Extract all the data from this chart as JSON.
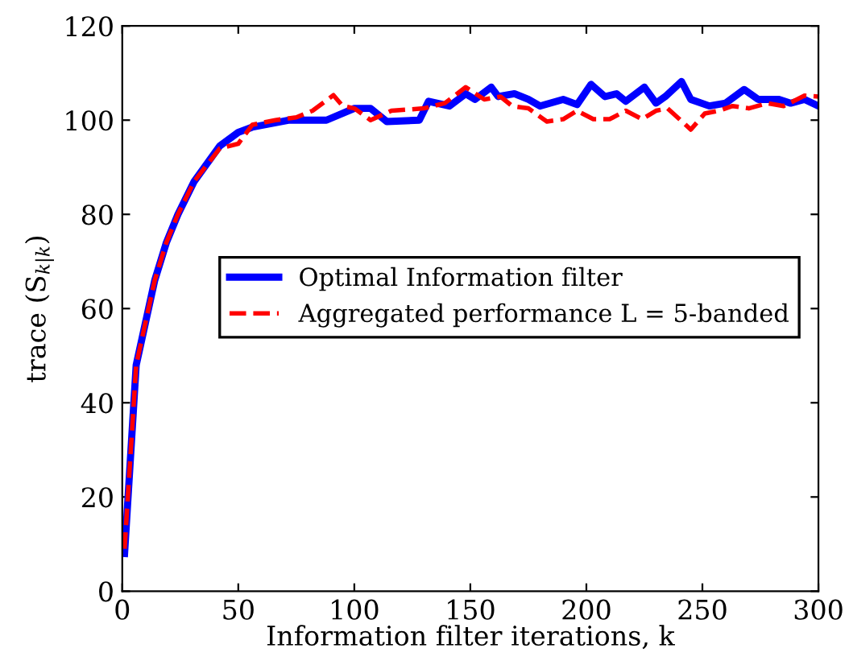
{
  "chart_data": {
    "type": "line",
    "xlabel": "Information filter iterations, k",
    "ylabel": "trace (S$_{k|k}$)",
    "xlim": [
      0,
      300
    ],
    "ylim": [
      0,
      120
    ],
    "xticks": [
      0,
      50,
      100,
      150,
      200,
      250,
      300
    ],
    "yticks": [
      0,
      20,
      40,
      60,
      80,
      100,
      120
    ],
    "grid": false,
    "legend": "center right",
    "marker": "none",
    "series": [
      {
        "name": "Optimal Information filter",
        "color": "#0000ff",
        "line_style": "solid",
        "x": [
          1,
          6,
          14,
          19,
          24,
          31,
          42,
          50,
          56,
          72,
          88,
          100,
          107,
          114,
          128,
          132,
          141,
          148,
          152,
          159,
          162,
          169,
          175,
          180,
          190,
          196,
          202,
          208,
          213,
          217,
          225,
          230,
          234,
          241,
          245,
          253,
          260,
          268,
          274,
          283,
          288,
          294,
          300
        ],
        "values": [
          8,
          48,
          66,
          74,
          80,
          87,
          94.5,
          97.4,
          98.5,
          100,
          100,
          102.5,
          102.5,
          99.7,
          100,
          104,
          103,
          105.6,
          104.4,
          107,
          105,
          105.6,
          104.4,
          103,
          104.4,
          103.3,
          107.6,
          105,
          105.6,
          104,
          107,
          103.6,
          105,
          108.2,
          104.4,
          103,
          103.6,
          106.5,
          104.4,
          104.4,
          103.6,
          104.4,
          103
        ]
      },
      {
        "name": "Aggregated performance L = 5-banded",
        "color": "#ff0000",
        "line_style": "dashed",
        "x": [
          1,
          6,
          14,
          19,
          24,
          31,
          42,
          50,
          56,
          66,
          75,
          82,
          91,
          95,
          100,
          107,
          116,
          130,
          139,
          148,
          156,
          163,
          168,
          175,
          183,
          190,
          196,
          203,
          210,
          217,
          224,
          230,
          235,
          245,
          251,
          257,
          263,
          270,
          278,
          285,
          294,
          300
        ],
        "values": [
          9,
          48,
          66,
          74,
          80,
          87,
          94,
          95,
          99,
          100,
          100.6,
          102,
          105.3,
          103,
          102.5,
          100,
          102,
          102.5,
          103.6,
          107,
          104.4,
          105,
          103,
          102.5,
          99.7,
          100.2,
          102,
          100.2,
          100.2,
          102,
          100.2,
          102,
          102.5,
          98,
          101.4,
          102,
          103,
          102.5,
          103.6,
          103,
          105.2,
          105
        ]
      }
    ]
  }
}
